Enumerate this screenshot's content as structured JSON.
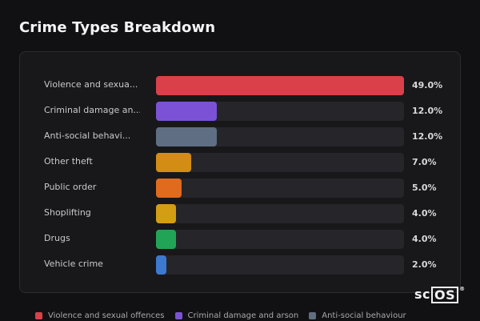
{
  "title": "Crime Types Breakdown",
  "logo": {
    "text_sc": "sc",
    "text_os": "OS",
    "mark": "®"
  },
  "chart_data": {
    "type": "bar",
    "orientation": "horizontal",
    "xlim": [
      0,
      49
    ],
    "categories": [
      "Violence and sexua...",
      "Criminal damage an...",
      "Anti-social behavi...",
      "Other theft",
      "Public order",
      "Shoplifting",
      "Drugs",
      "Vehicle crime"
    ],
    "values": [
      49.0,
      12.0,
      12.0,
      7.0,
      5.0,
      4.0,
      4.0,
      2.0
    ],
    "value_labels": [
      "49.0%",
      "12.0%",
      "12.0%",
      "7.0%",
      "5.0%",
      "4.0%",
      "4.0%",
      "2.0%"
    ],
    "colors": [
      "#d9404a",
      "#7b52d6",
      "#5f6e82",
      "#d38d14",
      "#e06a1d",
      "#d39e14",
      "#22a457",
      "#3d79d0"
    ]
  },
  "legend": [
    {
      "label": "Violence and sexual offences",
      "color": "#d9404a"
    },
    {
      "label": "Criminal damage and arson",
      "color": "#7b52d6"
    },
    {
      "label": "Anti-social behaviour",
      "color": "#5f6e82"
    }
  ]
}
